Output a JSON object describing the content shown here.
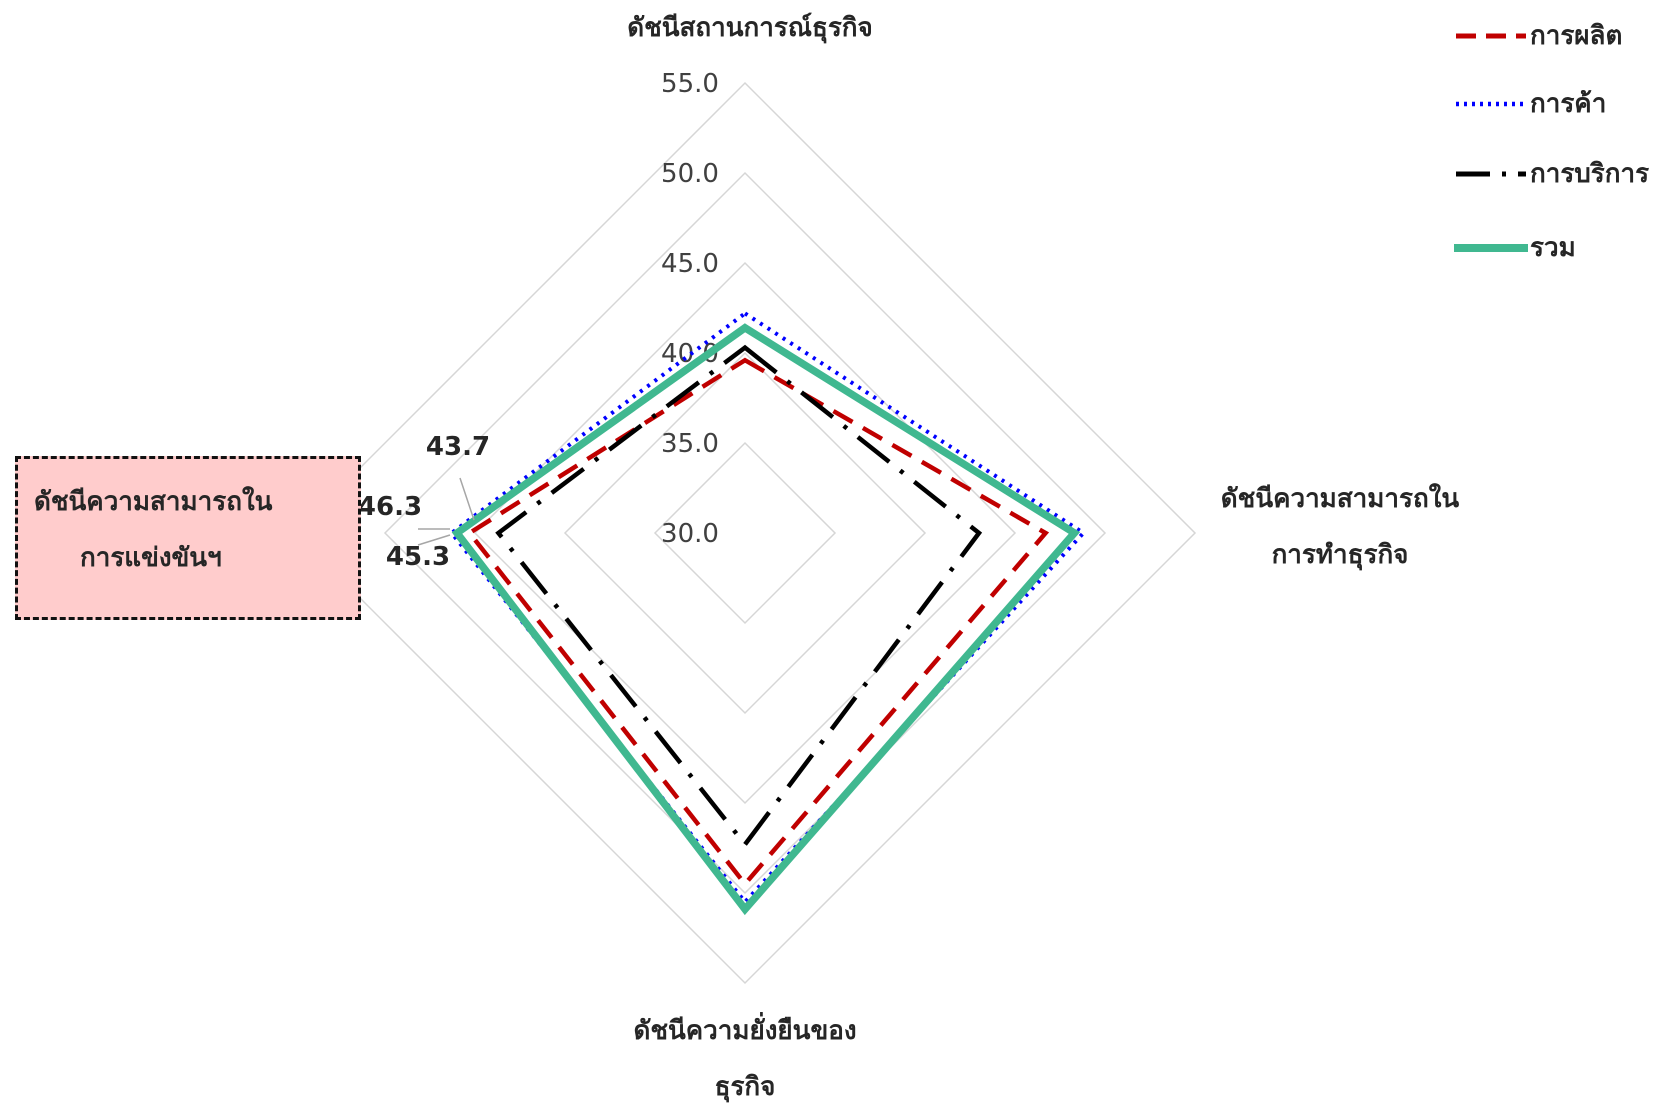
{
  "chart_data": {
    "type": "radar",
    "axes": [
      "ดัชนีสถานการณ์ธุรกิจ",
      "ดัชนีความสามารถในการทำธุรกิจ",
      "ดัชนีความยั่งยืนของธุรกิจ",
      "ดัชนีความสามารถในการแข่งขันฯ"
    ],
    "axis_label_lines": [
      [
        "ดัชนีสถานการณ์ธุรกิจ"
      ],
      [
        "ดัชนีความสามารถใน",
        "การทำธุรกิจ"
      ],
      [
        "ดัชนีความยั่งยืนของ",
        "ธุรกิจ"
      ],
      [
        "ดัชนีความสามารถใน",
        "การแข่งขันฯ"
      ]
    ],
    "rlim": [
      30,
      55
    ],
    "ticks": [
      "30.0",
      "35.0",
      "40.0",
      "45.0",
      "50.0",
      "55.0"
    ],
    "series": [
      {
        "name": "การผลิต",
        "values": [
          39.6,
          46.7,
          49.5,
          45.3
        ],
        "color": "#c00000",
        "style": "dashed"
      },
      {
        "name": "การค้า",
        "values": [
          42.2,
          48.8,
          50.5,
          46.3
        ],
        "color": "#0000ff",
        "style": "dotted"
      },
      {
        "name": "การบริการ",
        "values": [
          40.3,
          43.0,
          47.3,
          43.7
        ],
        "color": "#000000",
        "style": "dash-dot"
      },
      {
        "name": "รวม",
        "values": [
          41.4,
          48.3,
          50.9,
          46.0
        ],
        "color": "#40b890",
        "style": "solid"
      }
    ],
    "data_labels": [
      "43.7",
      "46.3",
      "45.3"
    ],
    "grid": true,
    "legend": "top-right"
  }
}
